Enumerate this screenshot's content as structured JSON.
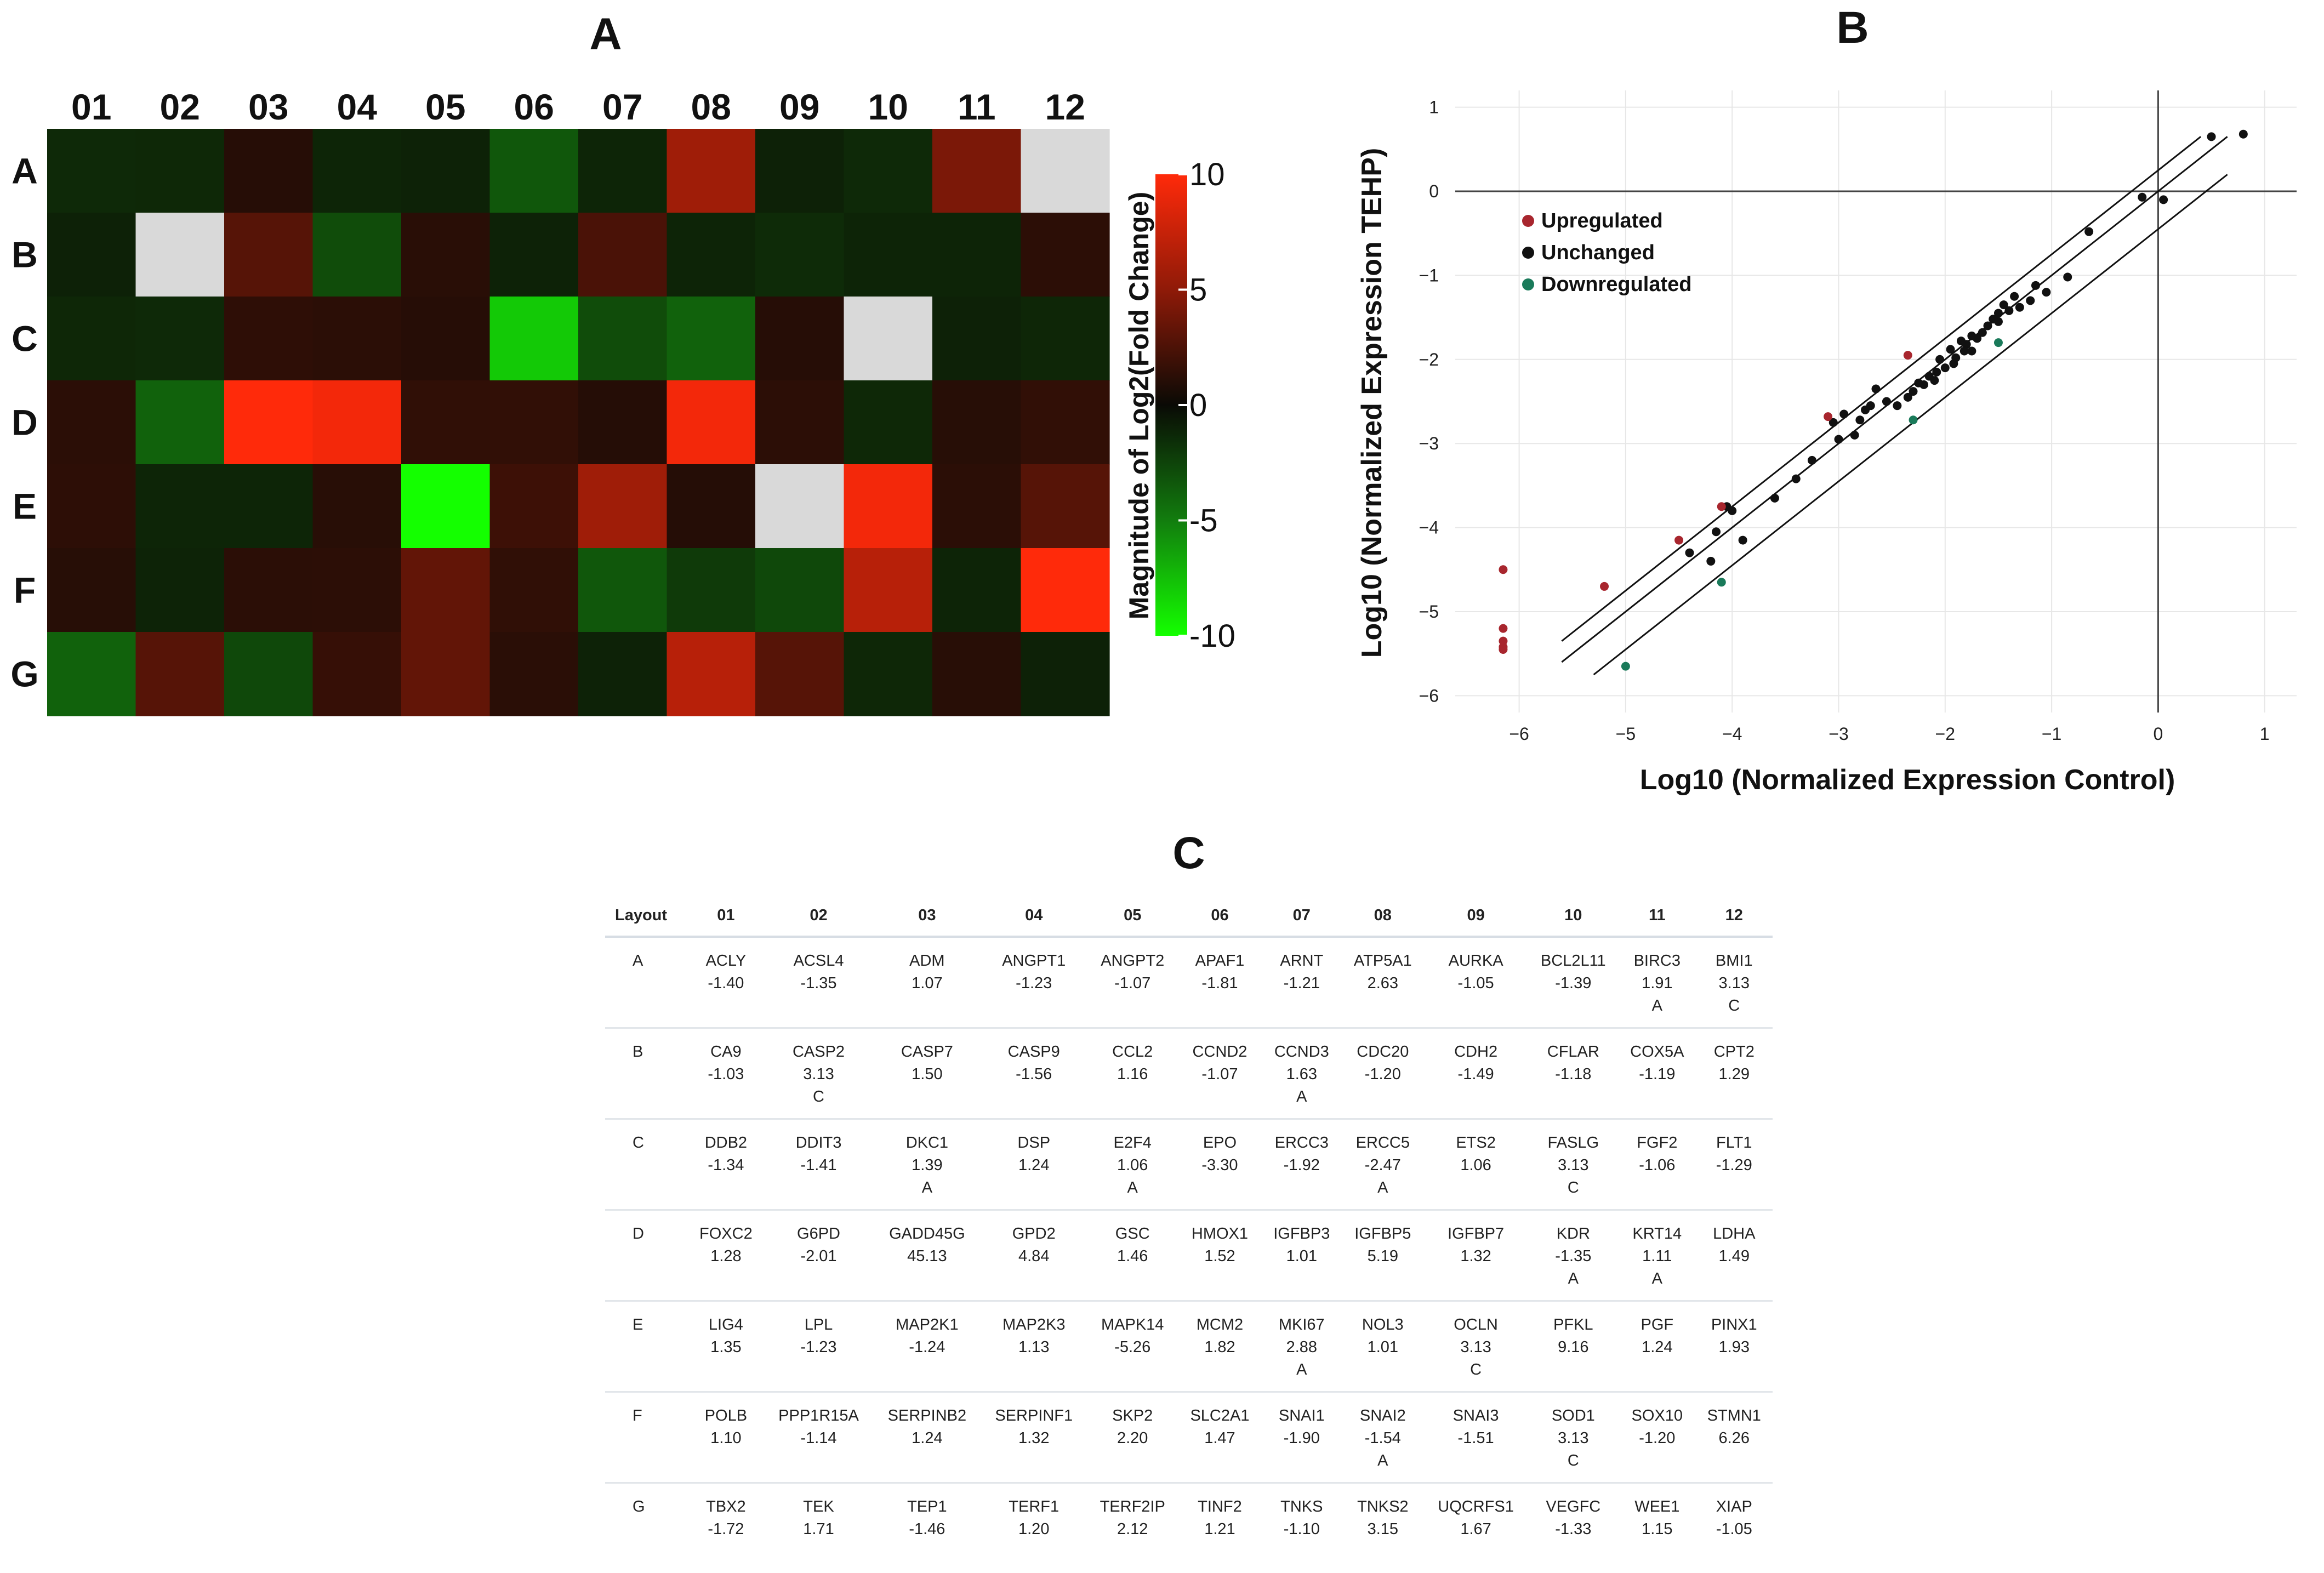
{
  "panels": {
    "a_title": "A",
    "b_title": "B",
    "c_title": "C"
  },
  "chart_data": [
    {
      "type": "heatmap",
      "title": "A",
      "columns": [
        "01",
        "02",
        "03",
        "04",
        "05",
        "06",
        "07",
        "08",
        "09",
        "10",
        "11",
        "12"
      ],
      "rows": [
        "A",
        "B",
        "C",
        "D",
        "E",
        "F",
        "G"
      ],
      "note": "cell values are log2 fold-change magnitudes read from the color scale; null = grey (not measured)",
      "values": [
        [
          -1.4,
          -1.35,
          1.07,
          -1.23,
          -1.07,
          -3.5,
          -1.21,
          6.0,
          -1.05,
          -1.39,
          4.5,
          null
        ],
        [
          -1.03,
          null,
          3.0,
          -3.0,
          1.16,
          -1.07,
          2.5,
          -1.2,
          -1.49,
          -1.18,
          -1.19,
          1.29
        ],
        [
          -1.34,
          -1.41,
          1.39,
          1.24,
          1.06,
          -8.0,
          -3.0,
          -4.0,
          1.06,
          null,
          -1.06,
          -1.29
        ],
        [
          1.28,
          -4.0,
          10.0,
          9.5,
          1.46,
          1.52,
          1.01,
          9.5,
          1.32,
          -1.35,
          1.11,
          1.49
        ],
        [
          1.35,
          -1.23,
          -1.24,
          1.13,
          -10.0,
          2.0,
          6.0,
          1.01,
          null,
          9.5,
          1.24,
          3.0
        ],
        [
          1.1,
          -1.14,
          1.24,
          1.32,
          3.5,
          1.47,
          -3.5,
          -2.2,
          -2.8,
          7.0,
          -1.2,
          10.0
        ],
        [
          -4.0,
          3.0,
          -2.8,
          1.71,
          3.5,
          1.21,
          -1.1,
          7.0,
          3.0,
          -1.33,
          1.15,
          -1.05
        ]
      ],
      "colorbar": {
        "label": "Magnitude of Log2(Fold Change)",
        "ticks": [
          "10",
          "5",
          "0",
          "-5",
          "-10"
        ],
        "range": [
          -10,
          10
        ]
      }
    },
    {
      "type": "scatter",
      "title": "B",
      "xlabel": "Log10 (Normalized Expression Control)",
      "ylabel": "Log10 (Normalized Expression TEHP)",
      "xlim": [
        -6.6,
        1.3
      ],
      "ylim": [
        -6.2,
        1.2
      ],
      "xticks": [
        "−6",
        "−5",
        "−4",
        "−3",
        "−2",
        "−1",
        "0",
        "1"
      ],
      "yticks": [
        "1",
        "0",
        "−1",
        "−2",
        "−3",
        "−4",
        "−5",
        "−6"
      ],
      "legend": [
        "Upregulated",
        "Unchanged",
        "Downregulated"
      ],
      "colors": {
        "up": "#a8262e",
        "unchanged": "#111111",
        "down": "#1a7a5a",
        "axis": "#444444",
        "grid": "#e7e7e7"
      },
      "boundary_lines": [
        {
          "x": [
            -5.6,
            0.4
          ],
          "y": [
            -5.35,
            0.65
          ]
        },
        {
          "x": [
            -5.6,
            0.65
          ],
          "y": [
            -5.6,
            0.65
          ]
        },
        {
          "x": [
            -5.3,
            0.65
          ],
          "y": [
            -5.75,
            0.2
          ]
        }
      ],
      "upregulated": [
        [
          -6.15,
          -4.5
        ],
        [
          -6.15,
          -5.2
        ],
        [
          -6.15,
          -5.35
        ],
        [
          -6.15,
          -5.42
        ],
        [
          -6.15,
          -5.45
        ],
        [
          -5.2,
          -4.7
        ],
        [
          -4.5,
          -4.15
        ],
        [
          -4.1,
          -3.75
        ],
        [
          -3.1,
          -2.68
        ],
        [
          -2.35,
          -1.95
        ]
      ],
      "downregulated": [
        [
          -5.0,
          -5.65
        ],
        [
          -4.1,
          -4.65
        ],
        [
          -2.3,
          -2.72
        ],
        [
          -1.5,
          -1.8
        ]
      ],
      "unchanged": [
        [
          0.8,
          0.68
        ],
        [
          0.5,
          0.65
        ],
        [
          -0.15,
          -0.07
        ],
        [
          0.05,
          -0.1
        ],
        [
          -0.85,
          -1.02
        ],
        [
          -0.65,
          -0.48
        ],
        [
          -1.05,
          -1.2
        ],
        [
          -1.15,
          -1.12
        ],
        [
          -1.2,
          -1.3
        ],
        [
          -1.3,
          -1.38
        ],
        [
          -1.35,
          -1.25
        ],
        [
          -1.4,
          -1.42
        ],
        [
          -1.45,
          -1.35
        ],
        [
          -1.5,
          -1.45
        ],
        [
          -1.5,
          -1.55
        ],
        [
          -1.55,
          -1.52
        ],
        [
          -1.6,
          -1.6
        ],
        [
          -1.65,
          -1.68
        ],
        [
          -1.7,
          -1.75
        ],
        [
          -1.75,
          -1.72
        ],
        [
          -1.8,
          -1.82
        ],
        [
          -1.82,
          -1.9
        ],
        [
          -1.85,
          -1.78
        ],
        [
          -1.9,
          -1.98
        ],
        [
          -1.92,
          -2.05
        ],
        [
          -1.95,
          -1.88
        ],
        [
          -2.0,
          -2.1
        ],
        [
          -2.05,
          -2.0
        ],
        [
          -2.08,
          -2.15
        ],
        [
          -2.1,
          -2.25
        ],
        [
          -2.15,
          -2.2
        ],
        [
          -2.2,
          -2.3
        ],
        [
          -2.25,
          -2.28
        ],
        [
          -2.3,
          -2.38
        ],
        [
          -2.35,
          -2.45
        ],
        [
          -2.45,
          -2.55
        ],
        [
          -2.65,
          -2.35
        ],
        [
          -2.7,
          -2.55
        ],
        [
          -2.75,
          -2.6
        ],
        [
          -2.8,
          -2.72
        ],
        [
          -2.85,
          -2.9
        ],
        [
          -2.95,
          -2.65
        ],
        [
          -3.0,
          -2.95
        ],
        [
          -3.05,
          -2.75
        ],
        [
          -3.25,
          -3.2
        ],
        [
          -3.4,
          -3.42
        ],
        [
          -3.6,
          -3.65
        ],
        [
          -3.9,
          -4.15
        ],
        [
          -4.0,
          -3.8
        ],
        [
          -4.15,
          -4.05
        ],
        [
          -4.2,
          -4.4
        ],
        [
          -4.4,
          -4.3
        ],
        [
          -4.05,
          -3.75
        ],
        [
          -1.75,
          -1.9
        ],
        [
          -2.55,
          -2.5
        ]
      ]
    },
    {
      "type": "table",
      "title": "C",
      "header": [
        "Layout",
        "01",
        "02",
        "03",
        "04",
        "05",
        "06",
        "07",
        "08",
        "09",
        "10",
        "11",
        "12"
      ],
      "rows": [
        {
          "row": "A",
          "cells": [
            {
              "gene": "ACLY",
              "value": "-1.40",
              "flag": ""
            },
            {
              "gene": "ACSL4",
              "value": "-1.35",
              "flag": ""
            },
            {
              "gene": "ADM",
              "value": "1.07",
              "flag": ""
            },
            {
              "gene": "ANGPT1",
              "value": "-1.23",
              "flag": ""
            },
            {
              "gene": "ANGPT2",
              "value": "-1.07",
              "flag": ""
            },
            {
              "gene": "APAF1",
              "value": "-1.81",
              "flag": ""
            },
            {
              "gene": "ARNT",
              "value": "-1.21",
              "flag": ""
            },
            {
              "gene": "ATP5A1",
              "value": "2.63",
              "flag": ""
            },
            {
              "gene": "AURKA",
              "value": "-1.05",
              "flag": ""
            },
            {
              "gene": "BCL2L11",
              "value": "-1.39",
              "flag": ""
            },
            {
              "gene": "BIRC3",
              "value": "1.91",
              "flag": "A"
            },
            {
              "gene": "BMI1",
              "value": "3.13",
              "flag": "C"
            }
          ]
        },
        {
          "row": "B",
          "cells": [
            {
              "gene": "CA9",
              "value": "-1.03",
              "flag": ""
            },
            {
              "gene": "CASP2",
              "value": "3.13",
              "flag": "C"
            },
            {
              "gene": "CASP7",
              "value": "1.50",
              "flag": ""
            },
            {
              "gene": "CASP9",
              "value": "-1.56",
              "flag": ""
            },
            {
              "gene": "CCL2",
              "value": "1.16",
              "flag": ""
            },
            {
              "gene": "CCND2",
              "value": "-1.07",
              "flag": ""
            },
            {
              "gene": "CCND3",
              "value": "1.63",
              "flag": "A"
            },
            {
              "gene": "CDC20",
              "value": "-1.20",
              "flag": ""
            },
            {
              "gene": "CDH2",
              "value": "-1.49",
              "flag": ""
            },
            {
              "gene": "CFLAR",
              "value": "-1.18",
              "flag": ""
            },
            {
              "gene": "COX5A",
              "value": "-1.19",
              "flag": ""
            },
            {
              "gene": "CPT2",
              "value": "1.29",
              "flag": ""
            }
          ]
        },
        {
          "row": "C",
          "cells": [
            {
              "gene": "DDB2",
              "value": "-1.34",
              "flag": ""
            },
            {
              "gene": "DDIT3",
              "value": "-1.41",
              "flag": ""
            },
            {
              "gene": "DKC1",
              "value": "1.39",
              "flag": "A"
            },
            {
              "gene": "DSP",
              "value": "1.24",
              "flag": ""
            },
            {
              "gene": "E2F4",
              "value": "1.06",
              "flag": "A"
            },
            {
              "gene": "EPO",
              "value": "-3.30",
              "flag": ""
            },
            {
              "gene": "ERCC3",
              "value": "-1.92",
              "flag": ""
            },
            {
              "gene": "ERCC5",
              "value": "-2.47",
              "flag": "A"
            },
            {
              "gene": "ETS2",
              "value": "1.06",
              "flag": ""
            },
            {
              "gene": "FASLG",
              "value": "3.13",
              "flag": "C"
            },
            {
              "gene": "FGF2",
              "value": "-1.06",
              "flag": ""
            },
            {
              "gene": "FLT1",
              "value": "-1.29",
              "flag": ""
            }
          ]
        },
        {
          "row": "D",
          "cells": [
            {
              "gene": "FOXC2",
              "value": "1.28",
              "flag": ""
            },
            {
              "gene": "G6PD",
              "value": "-2.01",
              "flag": ""
            },
            {
              "gene": "GADD45G",
              "value": "45.13",
              "flag": ""
            },
            {
              "gene": "GPD2",
              "value": "4.84",
              "flag": ""
            },
            {
              "gene": "GSC",
              "value": "1.46",
              "flag": ""
            },
            {
              "gene": "HMOX1",
              "value": "1.52",
              "flag": ""
            },
            {
              "gene": "IGFBP3",
              "value": "1.01",
              "flag": ""
            },
            {
              "gene": "IGFBP5",
              "value": "5.19",
              "flag": ""
            },
            {
              "gene": "IGFBP7",
              "value": "1.32",
              "flag": ""
            },
            {
              "gene": "KDR",
              "value": "-1.35",
              "flag": "A"
            },
            {
              "gene": "KRT14",
              "value": "1.11",
              "flag": "A"
            },
            {
              "gene": "LDHA",
              "value": "1.49",
              "flag": ""
            }
          ]
        },
        {
          "row": "E",
          "cells": [
            {
              "gene": "LIG4",
              "value": "1.35",
              "flag": ""
            },
            {
              "gene": "LPL",
              "value": "-1.23",
              "flag": ""
            },
            {
              "gene": "MAP2K1",
              "value": "-1.24",
              "flag": ""
            },
            {
              "gene": "MAP2K3",
              "value": "1.13",
              "flag": ""
            },
            {
              "gene": "MAPK14",
              "value": "-5.26",
              "flag": ""
            },
            {
              "gene": "MCM2",
              "value": "1.82",
              "flag": ""
            },
            {
              "gene": "MKI67",
              "value": "2.88",
              "flag": "A"
            },
            {
              "gene": "NOL3",
              "value": "1.01",
              "flag": ""
            },
            {
              "gene": "OCLN",
              "value": "3.13",
              "flag": "C"
            },
            {
              "gene": "PFKL",
              "value": "9.16",
              "flag": ""
            },
            {
              "gene": "PGF",
              "value": "1.24",
              "flag": ""
            },
            {
              "gene": "PINX1",
              "value": "1.93",
              "flag": ""
            }
          ]
        },
        {
          "row": "F",
          "cells": [
            {
              "gene": "POLB",
              "value": "1.10",
              "flag": ""
            },
            {
              "gene": "PPP1R15A",
              "value": "-1.14",
              "flag": ""
            },
            {
              "gene": "SERPINB2",
              "value": "1.24",
              "flag": ""
            },
            {
              "gene": "SERPINF1",
              "value": "1.32",
              "flag": ""
            },
            {
              "gene": "SKP2",
              "value": "2.20",
              "flag": ""
            },
            {
              "gene": "SLC2A1",
              "value": "1.47",
              "flag": ""
            },
            {
              "gene": "SNAI1",
              "value": "-1.90",
              "flag": ""
            },
            {
              "gene": "SNAI2",
              "value": "-1.54",
              "flag": "A"
            },
            {
              "gene": "SNAI3",
              "value": "-1.51",
              "flag": ""
            },
            {
              "gene": "SOD1",
              "value": "3.13",
              "flag": "C"
            },
            {
              "gene": "SOX10",
              "value": "-1.20",
              "flag": ""
            },
            {
              "gene": "STMN1",
              "value": "6.26",
              "flag": ""
            }
          ]
        },
        {
          "row": "G",
          "cells": [
            {
              "gene": "TBX2",
              "value": "-1.72",
              "flag": ""
            },
            {
              "gene": "TEK",
              "value": "1.71",
              "flag": ""
            },
            {
              "gene": "TEP1",
              "value": "-1.46",
              "flag": ""
            },
            {
              "gene": "TERF1",
              "value": "1.20",
              "flag": ""
            },
            {
              "gene": "TERF2IP",
              "value": "2.12",
              "flag": ""
            },
            {
              "gene": "TINF2",
              "value": "1.21",
              "flag": ""
            },
            {
              "gene": "TNKS",
              "value": "-1.10",
              "flag": ""
            },
            {
              "gene": "TNKS2",
              "value": "3.15",
              "flag": ""
            },
            {
              "gene": "UQCRFS1",
              "value": "1.67",
              "flag": ""
            },
            {
              "gene": "VEGFC",
              "value": "-1.33",
              "flag": ""
            },
            {
              "gene": "WEE1",
              "value": "1.15",
              "flag": ""
            },
            {
              "gene": "XIAP",
              "value": "-1.05",
              "flag": ""
            }
          ]
        }
      ]
    }
  ]
}
